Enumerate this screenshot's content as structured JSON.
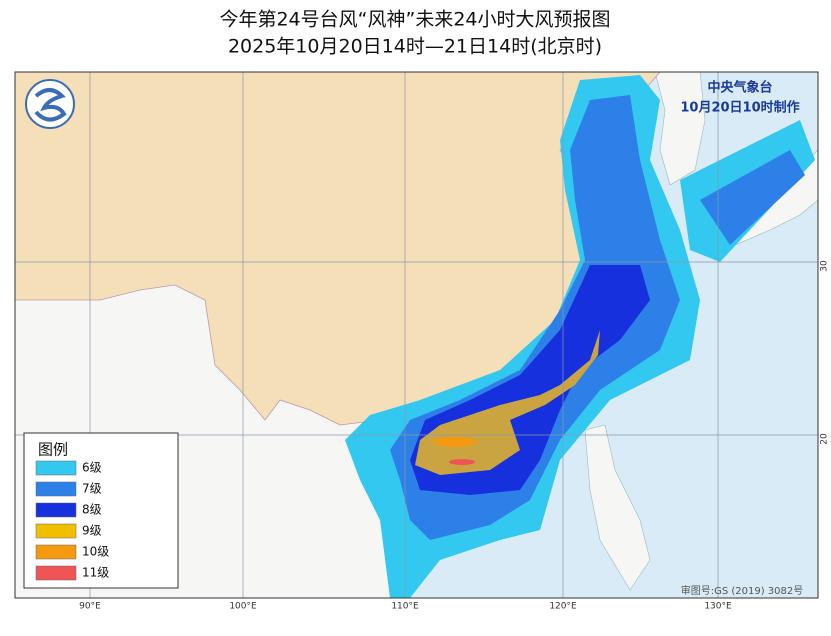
{
  "header": {
    "title": "今年第24号台风“风神”未来24小时大风预报图",
    "subtitle": "2025年10月20日14时—21日14时(北京时)"
  },
  "agency": {
    "name": "中央气象台",
    "issued": "10月20日10时制作"
  },
  "legend": {
    "title": "图例",
    "items": [
      {
        "label": "6级",
        "color": "#33c8f0"
      },
      {
        "label": "7级",
        "color": "#2d80e8"
      },
      {
        "label": "8级",
        "color": "#1530dc"
      },
      {
        "label": "9级",
        "color": "#f0c000"
      },
      {
        "label": "10级",
        "color": "#f59a10"
      },
      {
        "label": "11级",
        "color": "#f05555"
      }
    ]
  },
  "axis": {
    "longitude": [
      "90°E",
      "100°E",
      "110°E",
      "120°E",
      "130°E"
    ],
    "latitude": [
      "30",
      "20"
    ]
  },
  "footer": {
    "approval": "审图号:GS (2019) 3082号"
  }
}
